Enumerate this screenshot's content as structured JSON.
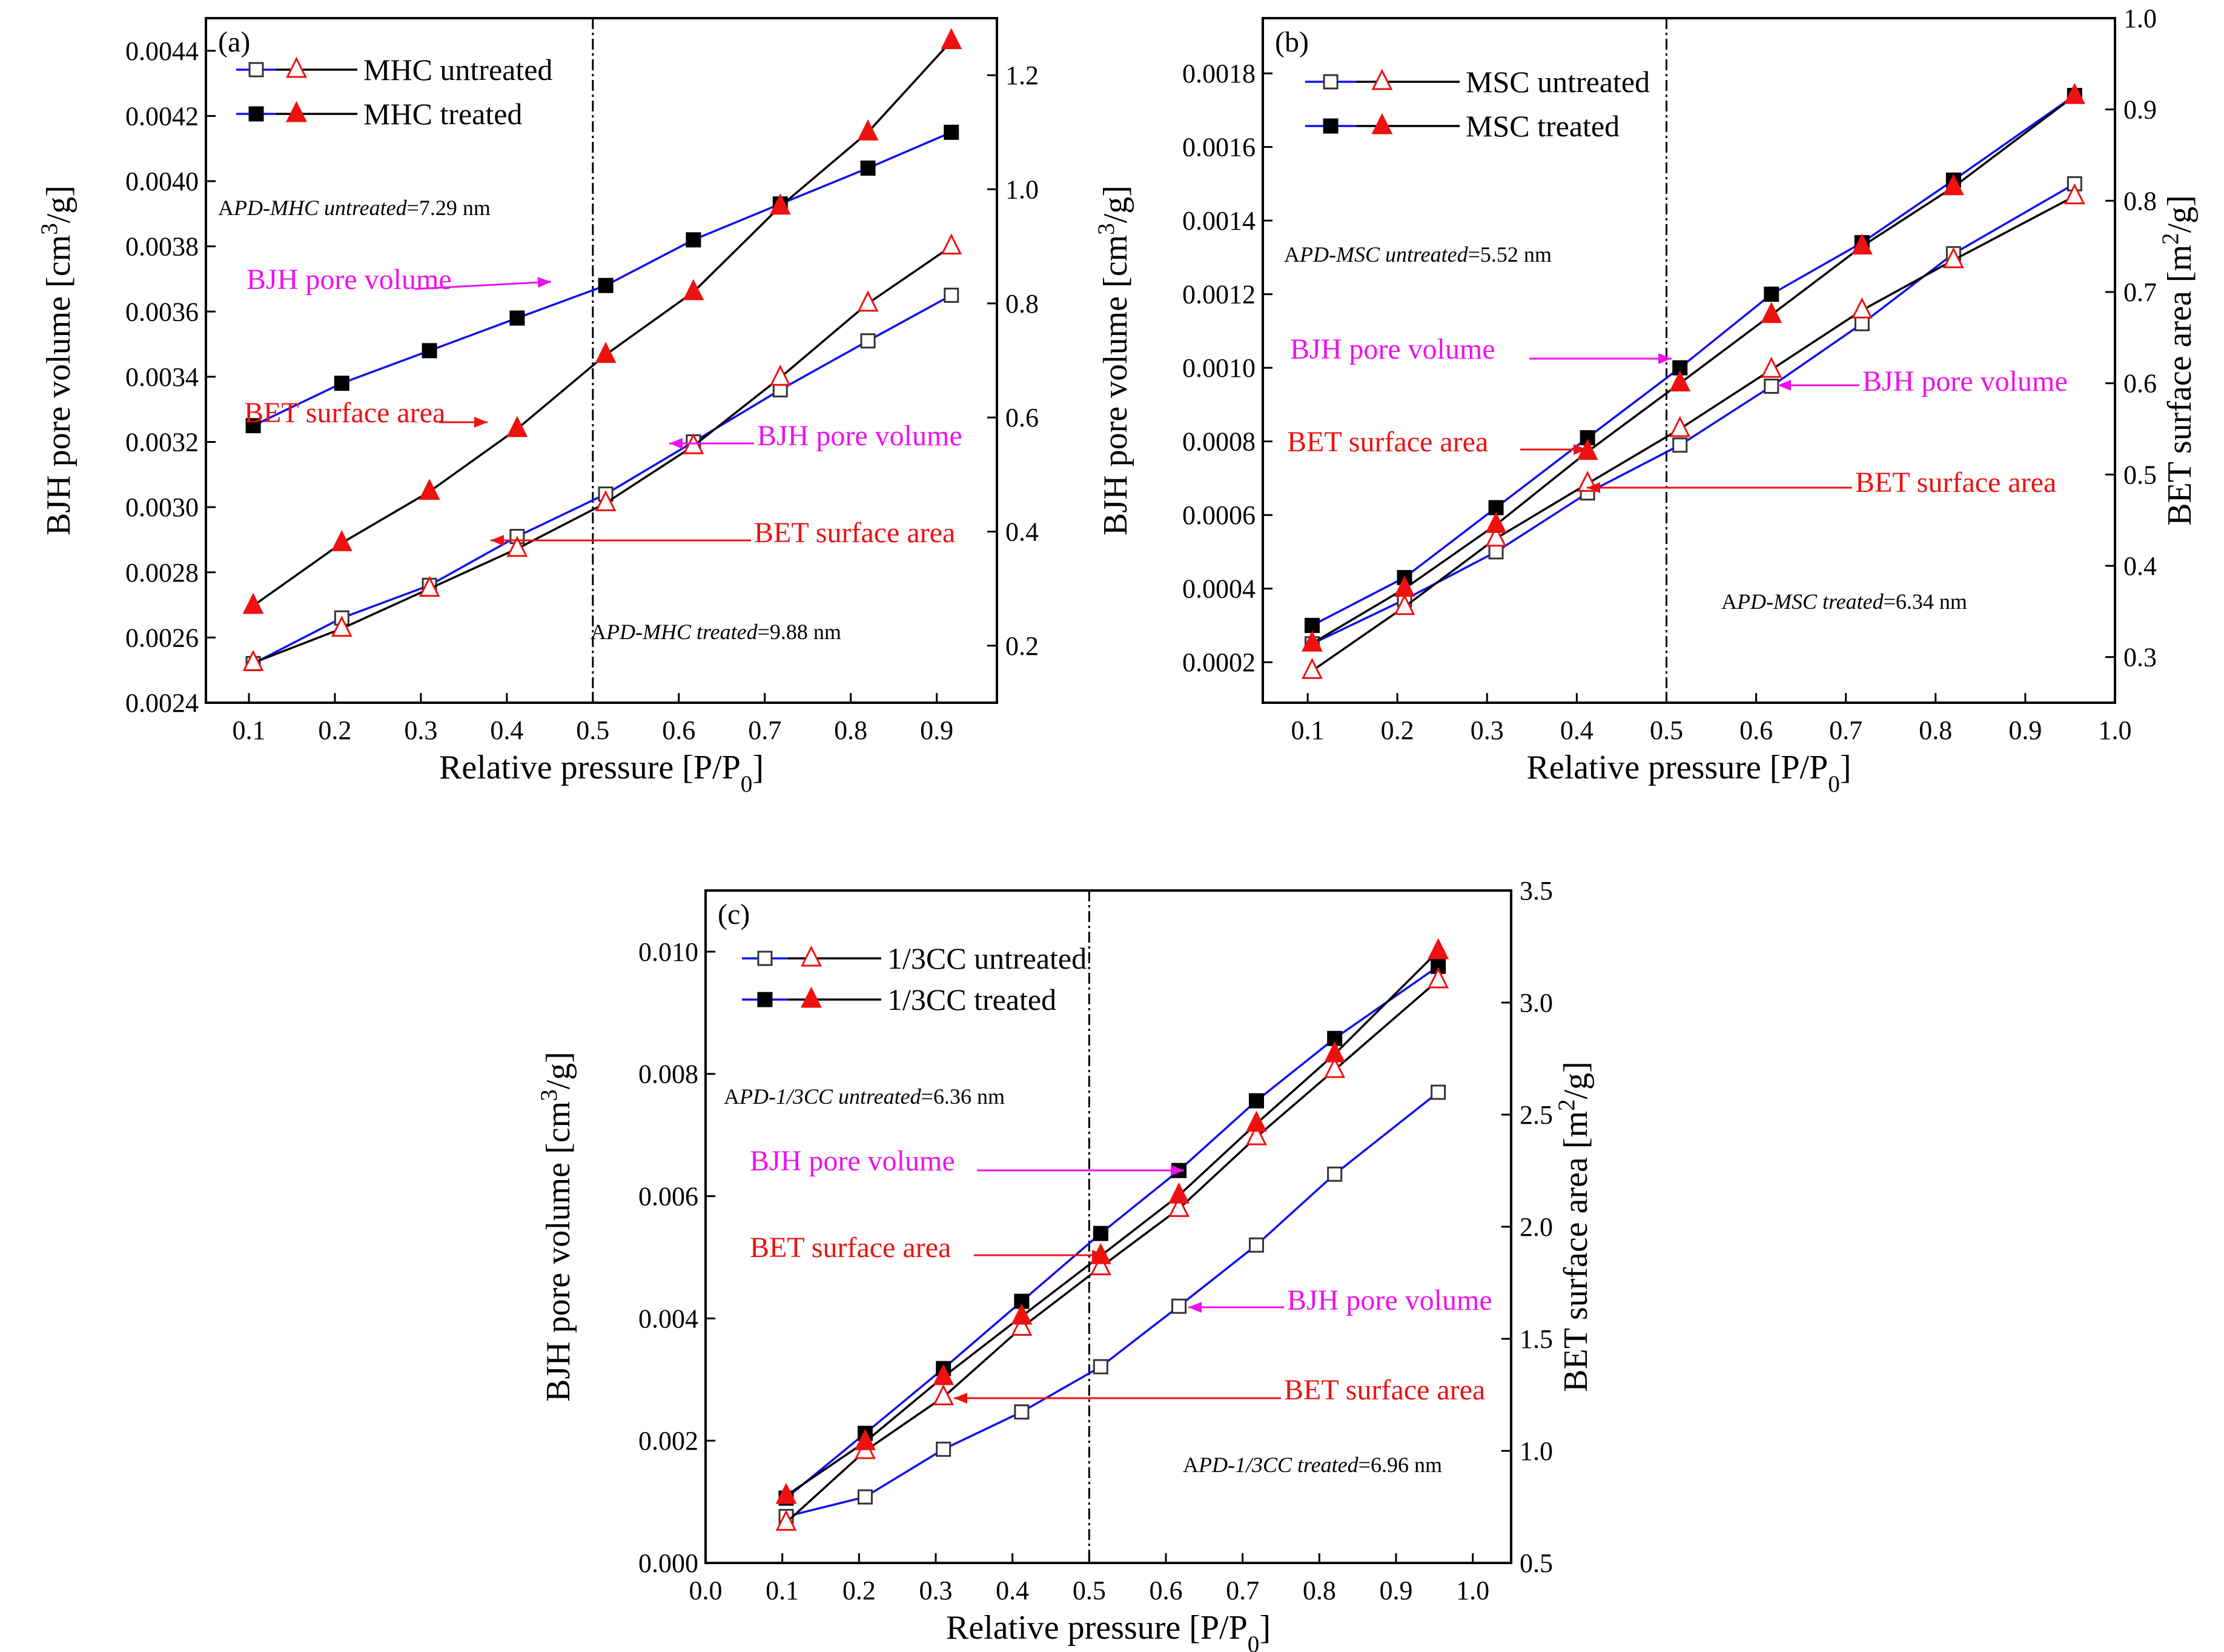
{
  "colors": {
    "blue": "#1010ee",
    "black": "#000000",
    "red": "#ee1111",
    "magenta": "#ee11ee"
  },
  "chart_data": [
    {
      "type": "line",
      "panel_label": "(a)",
      "xlabel": "Relative pressure [P/P0]",
      "ylabel": "BJH pore volume [cm3/g]",
      "y2label": "",
      "xlim": [
        0.05,
        0.97
      ],
      "ylim": [
        0.0024,
        0.0045
      ],
      "y2lim": [
        0.1,
        1.3
      ],
      "xticks": [
        0.1,
        0.2,
        0.3,
        0.4,
        0.5,
        0.6,
        0.7,
        0.8,
        0.9
      ],
      "xtick_labels": [
        "0.1",
        "0.2",
        "0.3",
        "0.4",
        "0.5",
        "0.6",
        "0.7",
        "0.8",
        "0.9"
      ],
      "yticks": [
        0.0024,
        0.0026,
        0.0028,
        0.003,
        0.0032,
        0.0034,
        0.0036,
        0.0038,
        0.004,
        0.0042,
        0.0044
      ],
      "ytick_labels": [
        "0.0024",
        "0.0026",
        "0.0028",
        "0.0030",
        "0.0032",
        "0.0034",
        "0.0036",
        "0.0038",
        "0.0040",
        "0.0042",
        "0.0044"
      ],
      "y2ticks": [
        0.2,
        0.4,
        0.6,
        0.8,
        1.0,
        1.2
      ],
      "y2tick_labels": [
        "0.2",
        "0.4",
        "0.6",
        "0.8",
        "1.0",
        "1.2"
      ],
      "divider_x": 0.5,
      "legend": [
        {
          "label": "MHC untreated",
          "filled": false
        },
        {
          "label": "MHC treated",
          "filled": true
        }
      ],
      "series": [
        {
          "name": "MHC untreated BJH pore volume",
          "axis": "left",
          "line": "blue",
          "marker": "square",
          "filled": false,
          "x": [
            0.105,
            0.208,
            0.31,
            0.412,
            0.515,
            0.617,
            0.718,
            0.82,
            0.917
          ],
          "y": [
            0.00252,
            0.00266,
            0.00276,
            0.00291,
            0.00304,
            0.0032,
            0.00336,
            0.00351,
            0.00365
          ]
        },
        {
          "name": "MHC treated BJH pore volume",
          "axis": "left",
          "line": "blue",
          "marker": "square",
          "filled": true,
          "x": [
            0.105,
            0.208,
            0.31,
            0.412,
            0.515,
            0.617,
            0.718,
            0.82,
            0.917
          ],
          "y": [
            0.00325,
            0.00338,
            0.00348,
            0.00358,
            0.00368,
            0.00382,
            0.00393,
            0.00404,
            0.00415
          ]
        },
        {
          "name": "MHC untreated BET surface area",
          "axis": "right",
          "line": "black",
          "marker": "triangle",
          "filled": false,
          "x": [
            0.105,
            0.208,
            0.31,
            0.412,
            0.515,
            0.617,
            0.718,
            0.82,
            0.917
          ],
          "y": [
            0.17,
            0.23,
            0.3,
            0.37,
            0.45,
            0.55,
            0.67,
            0.8,
            0.9
          ]
        },
        {
          "name": "MHC treated BET surface area",
          "axis": "right",
          "line": "black",
          "marker": "triangle",
          "filled": true,
          "x": [
            0.105,
            0.208,
            0.31,
            0.412,
            0.515,
            0.617,
            0.718,
            0.82,
            0.917
          ],
          "y": [
            0.27,
            0.38,
            0.47,
            0.58,
            0.71,
            0.82,
            0.97,
            1.1,
            1.26
          ]
        }
      ],
      "annotations": [
        {
          "text": "BJH pore volume",
          "color": "magenta"
        },
        {
          "text": "BET surface area",
          "color": "red"
        },
        {
          "text": "BJH pore volume",
          "color": "magenta"
        },
        {
          "text": "BET surface area",
          "color": "red"
        }
      ],
      "apd": [
        {
          "prefix": "A",
          "italic": "PD-MHC untreated",
          "value": "=7.29 nm"
        },
        {
          "prefix": "A",
          "italic": "PD-MHC treated",
          "value": "=9.88 nm"
        }
      ]
    },
    {
      "type": "line",
      "panel_label": "(b)",
      "xlabel": "Relative pressure [P/P0]",
      "ylabel": "BJH pore volume [cm3/g]",
      "y2label": "BET surface area [m2/g]",
      "xlim": [
        0.05,
        1.0
      ],
      "ylim": [
        9e-05,
        0.00195
      ],
      "y2lim": [
        0.25,
        1.0
      ],
      "xticks": [
        0.1,
        0.2,
        0.3,
        0.4,
        0.5,
        0.6,
        0.7,
        0.8,
        0.9,
        1.0
      ],
      "xtick_labels": [
        "0.1",
        "0.2",
        "0.3",
        "0.4",
        "0.5",
        "0.6",
        "0.7",
        "0.8",
        "0.9",
        "1.0"
      ],
      "yticks": [
        0.0002,
        0.0004,
        0.0006,
        0.0008,
        0.001,
        0.0012,
        0.0014,
        0.0016,
        0.0018
      ],
      "ytick_labels": [
        "0.0002",
        "0.0004",
        "0.0006",
        "0.0008",
        "0.0010",
        "0.0012",
        "0.0014",
        "0.0016",
        "0.0018"
      ],
      "y2ticks": [
        0.3,
        0.4,
        0.5,
        0.6,
        0.7,
        0.8,
        0.9,
        1.0
      ],
      "y2tick_labels": [
        "0.3",
        "0.4",
        "0.5",
        "0.6",
        "0.7",
        "0.8",
        "0.9",
        "1.0"
      ],
      "divider_x": 0.5,
      "legend": [
        {
          "label": "MSC untreated",
          "filled": false
        },
        {
          "label": "MSC treated",
          "filled": true
        }
      ],
      "series": [
        {
          "name": "MSC untreated BJH pore volume",
          "axis": "left",
          "line": "blue",
          "marker": "square",
          "filled": false,
          "x": [
            0.105,
            0.208,
            0.31,
            0.412,
            0.515,
            0.617,
            0.718,
            0.82,
            0.955
          ],
          "y": [
            0.00025,
            0.00037,
            0.0005,
            0.00066,
            0.00079,
            0.00095,
            0.00112,
            0.00131,
            0.0015
          ]
        },
        {
          "name": "MSC treated BJH pore volume",
          "axis": "left",
          "line": "blue",
          "marker": "square",
          "filled": true,
          "x": [
            0.105,
            0.208,
            0.31,
            0.412,
            0.515,
            0.617,
            0.718,
            0.82,
            0.955
          ],
          "y": [
            0.0003,
            0.00043,
            0.00062,
            0.00081,
            0.001,
            0.0012,
            0.00134,
            0.00151,
            0.00174
          ]
        },
        {
          "name": "MSC untreated BET surface area",
          "axis": "right",
          "line": "black",
          "marker": "triangle",
          "filled": false,
          "x": [
            0.105,
            0.208,
            0.31,
            0.412,
            0.515,
            0.617,
            0.718,
            0.82,
            0.955
          ],
          "y": [
            0.285,
            0.355,
            0.43,
            0.49,
            0.55,
            0.615,
            0.68,
            0.735,
            0.805
          ]
        },
        {
          "name": "MSC treated BET surface area",
          "axis": "right",
          "line": "black",
          "marker": "triangle",
          "filled": true,
          "x": [
            0.105,
            0.208,
            0.31,
            0.412,
            0.515,
            0.617,
            0.718,
            0.82,
            0.955
          ],
          "y": [
            0.315,
            0.375,
            0.445,
            0.525,
            0.6,
            0.675,
            0.75,
            0.815,
            0.915
          ]
        }
      ],
      "annotations": [
        {
          "text": "BJH pore volume",
          "color": "magenta"
        },
        {
          "text": "BET surface area",
          "color": "red"
        },
        {
          "text": "BJH pore volume",
          "color": "magenta"
        },
        {
          "text": "BET surface area",
          "color": "red"
        }
      ],
      "apd": [
        {
          "prefix": "A",
          "italic": "PD-MSC untreated",
          "value": "=5.52 nm"
        },
        {
          "prefix": "A",
          "italic": "PD-MSC treated",
          "value": "=6.34 nm"
        }
      ]
    },
    {
      "type": "line",
      "panel_label": "(c)",
      "xlabel": "Relative pressure [P/P0]",
      "ylabel": "BJH pore volume [cm3/g]",
      "y2label": "BET surface area [m2/g]",
      "xlim": [
        0.0,
        1.05
      ],
      "ylim": [
        0.0,
        0.011
      ],
      "y2lim": [
        0.5,
        3.5
      ],
      "xticks": [
        0.0,
        0.1,
        0.2,
        0.3,
        0.4,
        0.5,
        0.6,
        0.7,
        0.8,
        0.9,
        1.0
      ],
      "xtick_labels": [
        "0.0",
        "0.1",
        "0.2",
        "0.3",
        "0.4",
        "0.5",
        "0.6",
        "0.7",
        "0.8",
        "0.9",
        "1.0"
      ],
      "yticks": [
        0.0,
        0.002,
        0.004,
        0.006,
        0.008,
        0.01
      ],
      "ytick_labels": [
        "0.000",
        "0.002",
        "0.004",
        "0.006",
        "0.008",
        "0.010"
      ],
      "y2ticks": [
        0.5,
        1.0,
        1.5,
        2.0,
        2.5,
        3.0,
        3.5
      ],
      "y2tick_labels": [
        "0.5",
        "1.0",
        "1.5",
        "2.0",
        "2.5",
        "3.0",
        "3.5"
      ],
      "divider_x": 0.5,
      "legend": [
        {
          "label": "1/3CC untreated",
          "filled": false
        },
        {
          "label": "1/3CC treated",
          "filled": true
        }
      ],
      "series": [
        {
          "name": "1/3CC untreated BJH pore volume",
          "axis": "left",
          "line": "blue",
          "marker": "square",
          "filled": false,
          "x": [
            0.105,
            0.208,
            0.31,
            0.412,
            0.515,
            0.617,
            0.718,
            0.82,
            0.955
          ],
          "y": [
            0.00076,
            0.00108,
            0.00186,
            0.00247,
            0.00321,
            0.0042,
            0.0052,
            0.00636,
            0.0077
          ]
        },
        {
          "name": "1/3CC treated BJH pore volume",
          "axis": "left",
          "line": "blue",
          "marker": "square",
          "filled": true,
          "x": [
            0.105,
            0.208,
            0.31,
            0.412,
            0.515,
            0.617,
            0.718,
            0.82,
            0.955
          ],
          "y": [
            0.00106,
            0.00212,
            0.00318,
            0.00428,
            0.00539,
            0.00642,
            0.00756,
            0.00858,
            0.00976
          ]
        },
        {
          "name": "1/3CC untreated BET surface area",
          "axis": "right",
          "line": "black",
          "marker": "triangle",
          "filled": false,
          "x": [
            0.105,
            0.208,
            0.31,
            0.412,
            0.515,
            0.617,
            0.718,
            0.82,
            0.955
          ],
          "y": [
            0.68,
            1.0,
            1.24,
            1.55,
            1.82,
            2.08,
            2.4,
            2.7,
            3.1
          ]
        },
        {
          "name": "1/3CC treated BET surface area",
          "axis": "right",
          "line": "black",
          "marker": "triangle",
          "filled": true,
          "x": [
            0.105,
            0.208,
            0.31,
            0.412,
            0.515,
            0.617,
            0.718,
            0.82,
            0.955
          ],
          "y": [
            0.8,
            1.04,
            1.33,
            1.6,
            1.87,
            2.14,
            2.46,
            2.77,
            3.23
          ]
        }
      ],
      "annotations": [
        {
          "text": "BJH pore volume",
          "color": "magenta"
        },
        {
          "text": "BET surface area",
          "color": "red"
        },
        {
          "text": "BJH pore volume",
          "color": "magenta"
        },
        {
          "text": "BET surface area",
          "color": "red"
        }
      ],
      "apd": [
        {
          "prefix": "A",
          "italic": "PD-1/3CC untreated",
          "value": "=6.36 nm"
        },
        {
          "prefix": "A",
          "italic": "PD-1/3CC treated",
          "value": "=6.96 nm"
        }
      ]
    }
  ]
}
